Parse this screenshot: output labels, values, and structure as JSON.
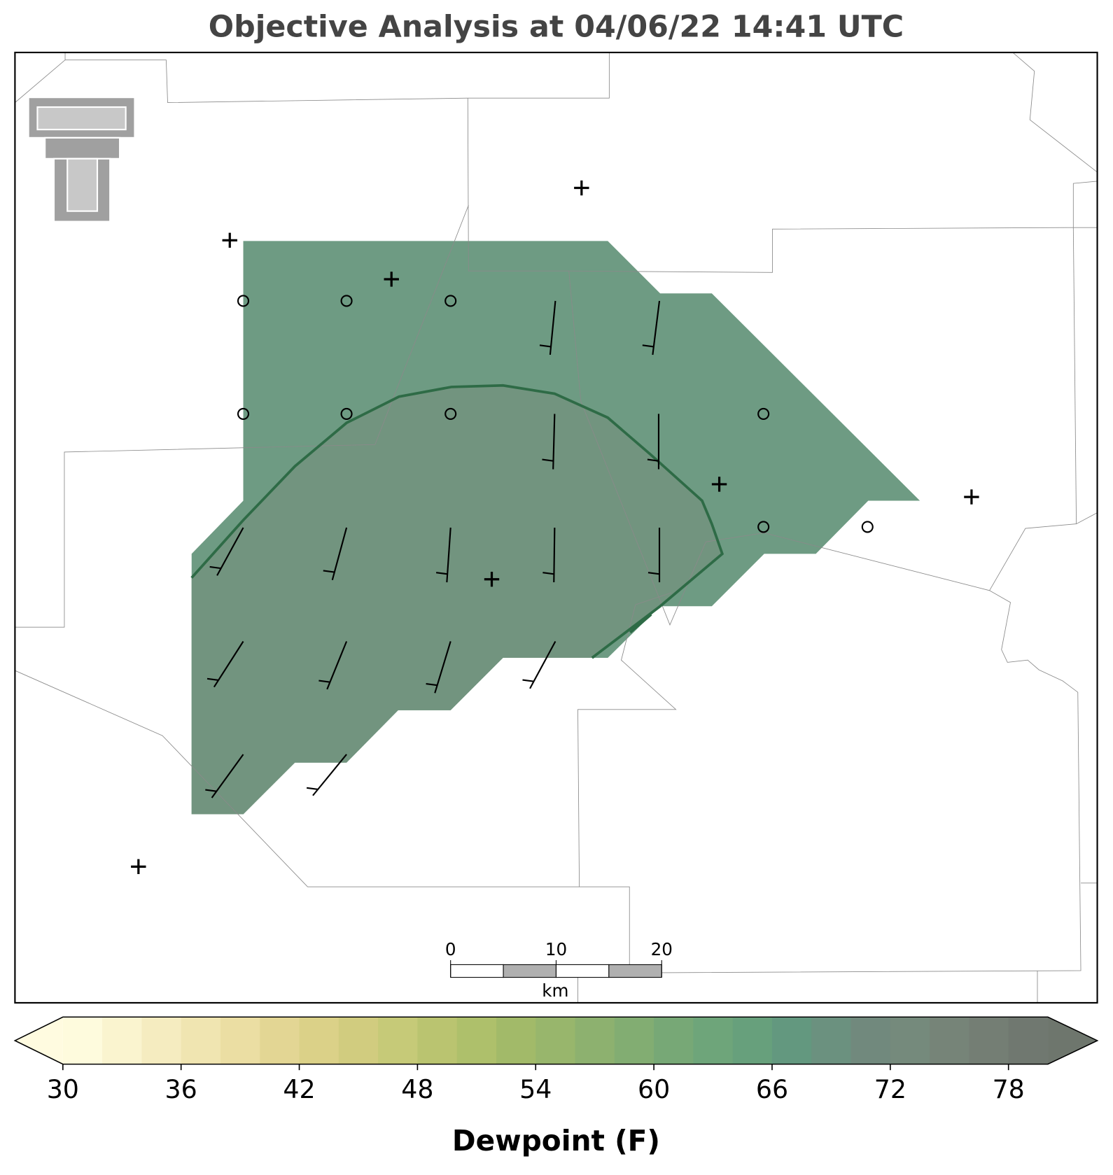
{
  "title": "Objective Analysis at 04/06/22 14:41 UTC",
  "scale_bar": {
    "lim": [
      0,
      20
    ],
    "ticks": [
      0,
      10,
      20
    ],
    "unit": "km"
  },
  "colorbar": {
    "label": "Dewpoint (F)",
    "lim": [
      30,
      80
    ],
    "ticks": [
      30,
      36,
      42,
      48,
      54,
      60,
      66,
      72,
      78
    ],
    "colors": [
      "#fefbdd",
      "#faf4cf",
      "#f5ecc0",
      "#f0e5b1",
      "#ebdea3",
      "#e3d694",
      "#dbd188",
      "#d1cc7f",
      "#c6ca78",
      "#bac470",
      "#aec06b",
      "#a2ba69",
      "#98b66c",
      "#8db16f",
      "#82ad72",
      "#77a876",
      "#6ea57a",
      "#67a07c",
      "#63987f",
      "#6b917f",
      "#71897d",
      "#758a7c",
      "#768478",
      "#747e74",
      "#707870"
    ],
    "under_color": "#fffbe0",
    "over_color": "#6e766d"
  }
}
